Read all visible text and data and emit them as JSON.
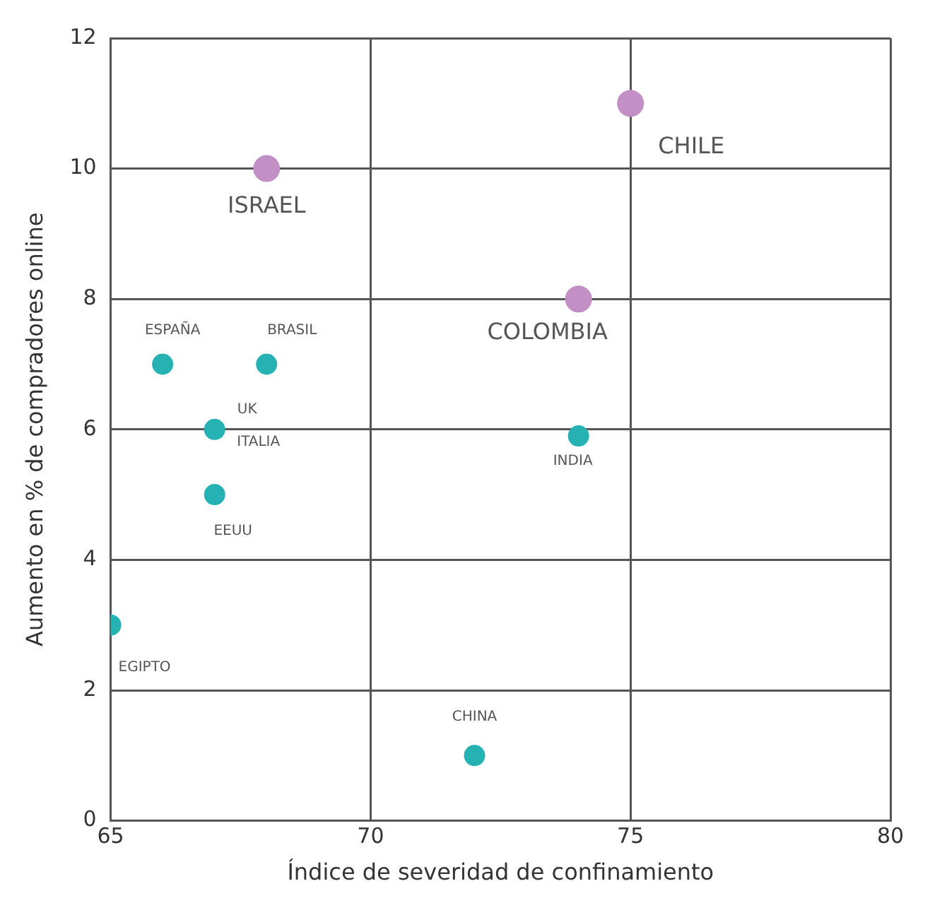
{
  "chart_data": {
    "type": "scatter",
    "xlabel": "Índice de severidad de confinamiento",
    "ylabel": "Aumento en % de compradores online",
    "xlim": [
      65,
      80
    ],
    "xticks": [
      65,
      70,
      75,
      80
    ],
    "ylim": [
      0,
      12
    ],
    "yticks": [
      0,
      2,
      4,
      6,
      8,
      10,
      12
    ],
    "grid": true,
    "legend": false,
    "marker": "circle",
    "series": [
      {
        "color": "#c290c4",
        "x": [
          75,
          68,
          74
        ],
        "values": [
          11,
          10,
          8
        ]
      },
      {
        "color": "#26b2b2",
        "x": [
          66,
          68,
          67,
          67,
          65,
          74,
          72
        ],
        "values": [
          7,
          7,
          6,
          5,
          3,
          5.9,
          1
        ]
      }
    ],
    "annotations": [
      {
        "text": "CHILE",
        "x": 75,
        "y": 11
      },
      {
        "text": "ISRAEL",
        "x": 68,
        "y": 10
      },
      {
        "text": "COLOMBIA",
        "x": 74,
        "y": 8
      },
      {
        "text": "ESPAÑA",
        "x": 66,
        "y": 7
      },
      {
        "text": "BRASIL",
        "x": 68,
        "y": 7
      },
      {
        "text": "UK",
        "x": 67,
        "y": 6
      },
      {
        "text": "ITALIA",
        "x": 67,
        "y": 6
      },
      {
        "text": "EEUU",
        "x": 67,
        "y": 5
      },
      {
        "text": "EGIPTO",
        "x": 65,
        "y": 3
      },
      {
        "text": "INDIA",
        "x": 74,
        "y": 5.9
      },
      {
        "text": "CHINA",
        "x": 72,
        "y": 1
      }
    ]
  }
}
